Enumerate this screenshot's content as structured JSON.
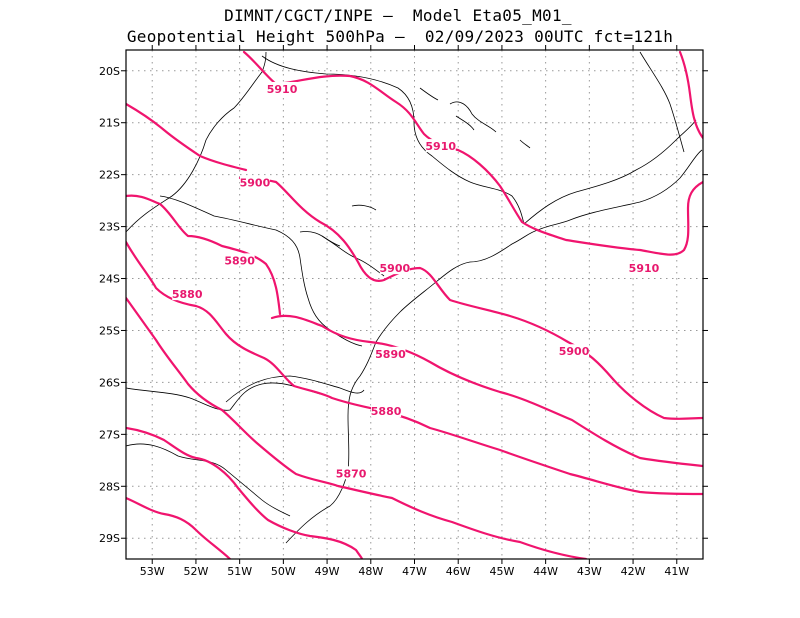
{
  "title": {
    "line1": "DIMNT/CGCT/INPE –  Model Eta05_M01_",
    "line2": "Geopotential Height 500hPa –  02/09/2023 00UTC fct=121h"
  },
  "colors": {
    "contour": "#f0146e",
    "label": "#e8196e",
    "coast": "#000000",
    "grid": "#999999"
  },
  "map": {
    "lon_range": [
      -53.6,
      -40.4
    ],
    "lat_range": [
      -29.4,
      -19.6
    ],
    "grid": true,
    "lon_ticks": [
      {
        "value": -53,
        "label": "53W"
      },
      {
        "value": -52,
        "label": "52W"
      },
      {
        "value": -51,
        "label": "51W"
      },
      {
        "value": -50,
        "label": "50W"
      },
      {
        "value": -49,
        "label": "49W"
      },
      {
        "value": -48,
        "label": "48W"
      },
      {
        "value": -47,
        "label": "47W"
      },
      {
        "value": -46,
        "label": "46W"
      },
      {
        "value": -45,
        "label": "45W"
      },
      {
        "value": -44,
        "label": "44W"
      },
      {
        "value": -43,
        "label": "43W"
      },
      {
        "value": -42,
        "label": "42W"
      },
      {
        "value": -41,
        "label": "41W"
      }
    ],
    "lat_ticks": [
      {
        "value": -20,
        "label": "20S"
      },
      {
        "value": -21,
        "label": "21S"
      },
      {
        "value": -22,
        "label": "22S"
      },
      {
        "value": -23,
        "label": "23S"
      },
      {
        "value": -24,
        "label": "24S"
      },
      {
        "value": -25,
        "label": "25S"
      },
      {
        "value": -26,
        "label": "26S"
      },
      {
        "value": -27,
        "label": "27S"
      },
      {
        "value": -28,
        "label": "28S"
      },
      {
        "value": -29,
        "label": "29S"
      }
    ]
  },
  "contour_labels": [
    {
      "text": "5910",
      "lon": -50.03,
      "lat": -20.35
    },
    {
      "text": "5910",
      "lon": -46.4,
      "lat": -21.45
    },
    {
      "text": "5910",
      "lon": -41.75,
      "lat": -23.8
    },
    {
      "text": "5900",
      "lon": -50.65,
      "lat": -22.15
    },
    {
      "text": "5900",
      "lon": -47.45,
      "lat": -23.8
    },
    {
      "text": "5900",
      "lon": -43.35,
      "lat": -25.4
    },
    {
      "text": "5890",
      "lon": -51.0,
      "lat": -23.65
    },
    {
      "text": "5890",
      "lon": -47.55,
      "lat": -25.45
    },
    {
      "text": "5880",
      "lon": -52.2,
      "lat": -24.3
    },
    {
      "text": "5880",
      "lon": -47.65,
      "lat": -26.55
    },
    {
      "text": "5870",
      "lon": -48.45,
      "lat": -27.75
    }
  ]
}
